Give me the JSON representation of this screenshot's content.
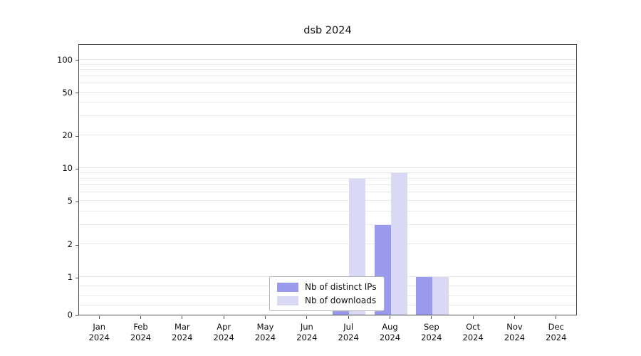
{
  "chart_data": {
    "type": "bar",
    "title": "dsb 2024",
    "year_label": "2024",
    "categories": [
      "Jan",
      "Feb",
      "Mar",
      "Apr",
      "May",
      "Jun",
      "Jul",
      "Aug",
      "Sep",
      "Oct",
      "Nov",
      "Dec"
    ],
    "series": [
      {
        "name": "Nb of distinct IPs",
        "color": "#9a9aec",
        "values": [
          0,
          0,
          0,
          0,
          0,
          0,
          1,
          3,
          1,
          0,
          0,
          0
        ]
      },
      {
        "name": "Nb of downloads",
        "color": "#d9d9f6",
        "values": [
          0,
          0,
          0,
          0,
          0,
          0,
          8,
          9,
          1,
          0,
          0,
          0
        ]
      }
    ],
    "y_ticks": [
      0,
      1,
      2,
      5,
      10,
      20,
      50,
      100
    ],
    "minor_gridline_values": [
      0.25,
      0.5,
      0.75,
      1,
      2,
      3,
      4,
      5,
      6,
      7,
      8,
      9,
      10,
      20,
      30,
      40,
      50,
      60,
      70,
      80,
      90,
      100
    ],
    "scale": "symlog",
    "ylim": [
      0,
      100
    ],
    "grid": true,
    "legend_position": "lower center",
    "xlabel": "",
    "ylabel": ""
  }
}
